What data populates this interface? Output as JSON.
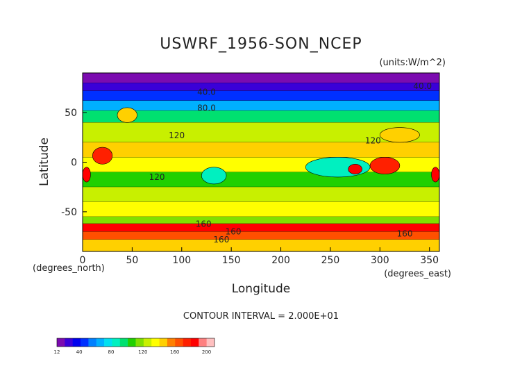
{
  "chart_data": {
    "type": "heatmap",
    "title": "USWRF_1956-SON_NCEP",
    "units_label": "(units:W/m^2)",
    "xlabel": "Longitude",
    "ylabel": "Latitude",
    "x_unit_label": "(degrees_east)",
    "y_unit_label": "(degrees_north)",
    "xlim": [
      0,
      360
    ],
    "ylim": [
      -90,
      90
    ],
    "x_ticks": [
      0,
      50,
      100,
      150,
      200,
      250,
      300,
      350
    ],
    "y_ticks": [
      -50,
      0,
      50
    ],
    "x_tick_labels": [
      "0",
      "50",
      "100",
      "150",
      "200",
      "250",
      "300",
      "350"
    ],
    "y_tick_labels": [
      "-50",
      "0",
      "50"
    ],
    "contour_interval_text": "CONTOUR INTERVAL = 2.000E+01",
    "contour_labels": [
      {
        "text": "40.0",
        "lon": 125,
        "lat": 68
      },
      {
        "text": "40.0",
        "lon": 343,
        "lat": 74
      },
      {
        "text": "80.0",
        "lon": 125,
        "lat": 52
      },
      {
        "text": "120",
        "lon": 95,
        "lat": 24
      },
      {
        "text": "120",
        "lon": 293,
        "lat": 19
      },
      {
        "text": "120",
        "lon": 75,
        "lat": -18
      },
      {
        "text": "160",
        "lon": 122,
        "lat": -65
      },
      {
        "text": "160",
        "lon": 152,
        "lat": -73
      },
      {
        "text": "160",
        "lon": 140,
        "lat": -81
      },
      {
        "text": "160",
        "lon": 325,
        "lat": -75
      }
    ],
    "colorbar": {
      "ticks": [
        12,
        40,
        80,
        120,
        160,
        200
      ],
      "colors": [
        "#7b0bb0",
        "#3a00d8",
        "#0000ee",
        "#0030ff",
        "#0080ff",
        "#00b0ff",
        "#00e0f0",
        "#00f0c0",
        "#00e070",
        "#20d000",
        "#80e000",
        "#c8f000",
        "#ffff00",
        "#ffd000",
        "#ff8000",
        "#ff5000",
        "#ff2000",
        "#ff0000",
        "#ff8080",
        "#ffc0c0"
      ],
      "min": 12,
      "max": 210
    },
    "latitude_bands": [
      {
        "lat_from": 90,
        "lat_to": 80,
        "value": 15
      },
      {
        "lat_from": 80,
        "lat_to": 72,
        "value": 30
      },
      {
        "lat_from": 72,
        "lat_to": 62,
        "value": 45
      },
      {
        "lat_from": 62,
        "lat_to": 52,
        "value": 70
      },
      {
        "lat_from": 52,
        "lat_to": 40,
        "value": 95
      },
      {
        "lat_from": 40,
        "lat_to": 20,
        "value": 125
      },
      {
        "lat_from": 20,
        "lat_to": 5,
        "value": 145
      },
      {
        "lat_from": 5,
        "lat_to": -10,
        "value": 135
      },
      {
        "lat_from": -10,
        "lat_to": -25,
        "value": 110
      },
      {
        "lat_from": -25,
        "lat_to": -40,
        "value": 125
      },
      {
        "lat_from": -40,
        "lat_to": -55,
        "value": 140
      },
      {
        "lat_from": -55,
        "lat_to": -62,
        "value": 120
      },
      {
        "lat_from": -62,
        "lat_to": -70,
        "value": 190
      },
      {
        "lat_from": -70,
        "lat_to": -78,
        "value": 165
      },
      {
        "lat_from": -78,
        "lat_to": -90,
        "value": 150
      }
    ],
    "regional_features": [
      {
        "lon": [
          10,
          30
        ],
        "lat": [
          -2,
          15
        ],
        "value": 180
      },
      {
        "lon": [
          0,
          8
        ],
        "lat": [
          -20,
          -5
        ],
        "value": 185
      },
      {
        "lon": [
          352,
          360
        ],
        "lat": [
          -20,
          -5
        ],
        "value": 185
      },
      {
        "lon": [
          120,
          145
        ],
        "lat": [
          -22,
          -5
        ],
        "value": 90
      },
      {
        "lon": [
          225,
          290
        ],
        "lat": [
          -15,
          5
        ],
        "value": 90
      },
      {
        "lon": [
          268,
          282
        ],
        "lat": [
          -12,
          -2
        ],
        "value": 190
      },
      {
        "lon": [
          290,
          320
        ],
        "lat": [
          -12,
          5
        ],
        "value": 175
      },
      {
        "lon": [
          35,
          55
        ],
        "lat": [
          40,
          55
        ],
        "value": 150
      },
      {
        "lon": [
          300,
          340
        ],
        "lat": [
          20,
          35
        ],
        "value": 150
      }
    ]
  }
}
